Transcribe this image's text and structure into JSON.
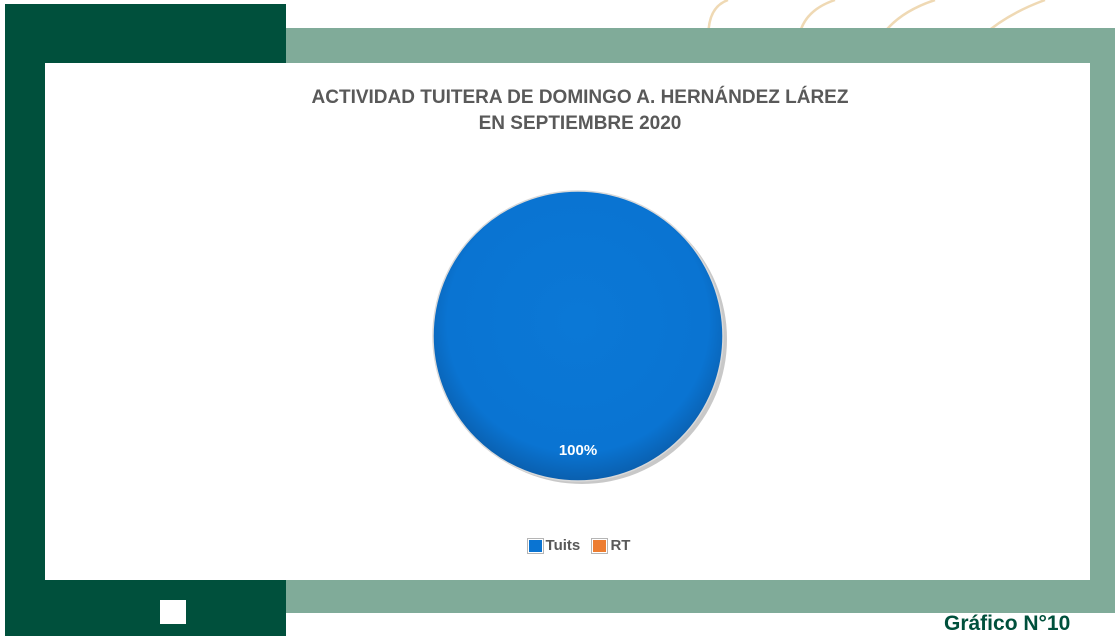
{
  "figure_label": "Gráfico N°10",
  "colors": {
    "dark_green": "#00503c",
    "sage": "#80ab99",
    "arc_line": "#efd9b4",
    "tuits": "#0a74d2",
    "rt": "#ed7d31"
  },
  "chart_data": {
    "type": "pie",
    "title_lines": [
      "ACTIVIDAD TUITERA DE DOMINGO A. HERNÁNDEZ LÁREZ",
      "EN SEPTIEMBRE 2020"
    ],
    "categories": [
      "Tuits",
      "RT"
    ],
    "values": [
      100,
      0
    ],
    "data_labels": [
      "100%",
      ""
    ],
    "colors": [
      "#0a74d2",
      "#ed7d31"
    ],
    "legend_position": "bottom"
  }
}
